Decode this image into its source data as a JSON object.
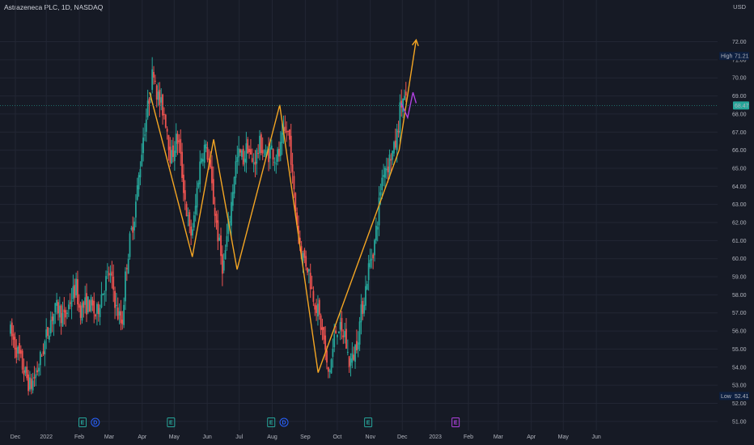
{
  "header": {
    "title": "Astrazeneca PLC, 1D, NASDAQ",
    "currency": "USD"
  },
  "colors": {
    "background": "#161a25",
    "grid": "#222634",
    "text": "#b2b5be",
    "up": "#26a69a",
    "down": "#ef5350",
    "pattern": "#f5a623",
    "projection": "#b041e0",
    "price_label": "#26a69a",
    "hl_label": "#0d1f3f"
  },
  "chart_data": {
    "type": "candlestick",
    "title": "Astrazeneca PLC, 1D, NASDAQ",
    "ylim": [
      50.5,
      73.5
    ],
    "y_ticks": [
      "51.00",
      "52.00",
      "53.00",
      "54.00",
      "55.00",
      "56.00",
      "57.00",
      "58.00",
      "59.00",
      "60.00",
      "61.00",
      "62.00",
      "63.00",
      "64.00",
      "65.00",
      "66.00",
      "67.00",
      "68.00",
      "69.00",
      "70.00",
      "71.00",
      "72.00"
    ],
    "x_ticks": [
      {
        "label": "Dec",
        "t": 0
      },
      {
        "label": "2022",
        "t": 29
      },
      {
        "label": "Feb",
        "t": 60
      },
      {
        "label": "Mar",
        "t": 88
      },
      {
        "label": "Apr",
        "t": 119
      },
      {
        "label": "May",
        "t": 149
      },
      {
        "label": "Jun",
        "t": 180
      },
      {
        "label": "Jul",
        "t": 210
      },
      {
        "label": "Aug",
        "t": 241
      },
      {
        "label": "Sep",
        "t": 272
      },
      {
        "label": "Oct",
        "t": 302
      },
      {
        "label": "Nov",
        "t": 333
      },
      {
        "label": "Dec",
        "t": 363
      },
      {
        "label": "2023",
        "t": 394
      },
      {
        "label": "Feb",
        "t": 425
      },
      {
        "label": "Mar",
        "t": 453
      },
      {
        "label": "Apr",
        "t": 484
      },
      {
        "label": "May",
        "t": 514
      },
      {
        "label": "Jun",
        "t": 545
      }
    ],
    "price_path": [
      [
        -6,
        56.1
      ],
      [
        0,
        55.2
      ],
      [
        8,
        53.8
      ],
      [
        14,
        52.9
      ],
      [
        20,
        53.7
      ],
      [
        27,
        55.2
      ],
      [
        34,
        56.8
      ],
      [
        40,
        57.3
      ],
      [
        46,
        56.6
      ],
      [
        52,
        57.8
      ],
      [
        57,
        58.4
      ],
      [
        60,
        57.2
      ],
      [
        65,
        57.4
      ],
      [
        70,
        57.5
      ],
      [
        76,
        56.8
      ],
      [
        80,
        57.9
      ],
      [
        84,
        58.6
      ],
      [
        88,
        59.2
      ],
      [
        92,
        58.3
      ],
      [
        95,
        57.1
      ],
      [
        98,
        56.7
      ],
      [
        100,
        56.3
      ],
      [
        104,
        59.6
      ],
      [
        108,
        61.2
      ],
      [
        112,
        62.6
      ],
      [
        116,
        64.6
      ],
      [
        120,
        66.8
      ],
      [
        124,
        68.2
      ],
      [
        127,
        69.6
      ],
      [
        130,
        70.6
      ],
      [
        133,
        69.1
      ],
      [
        136,
        68.5
      ],
      [
        139,
        68.2
      ],
      [
        142,
        67.4
      ],
      [
        146,
        65.4
      ],
      [
        150,
        66.5
      ],
      [
        153,
        66.6
      ],
      [
        156,
        64.9
      ],
      [
        160,
        62.9
      ],
      [
        164,
        61.2
      ],
      [
        168,
        62.2
      ],
      [
        171,
        64.2
      ],
      [
        174,
        65.6
      ],
      [
        177,
        66.2
      ],
      [
        181,
        65.7
      ],
      [
        184,
        64.1
      ],
      [
        188,
        62.2
      ],
      [
        192,
        60.4
      ],
      [
        195,
        59.4
      ],
      [
        198,
        60.9
      ],
      [
        202,
        62.7
      ],
      [
        206,
        65.1
      ],
      [
        210,
        65.8
      ],
      [
        214,
        65.5
      ],
      [
        218,
        66.3
      ],
      [
        222,
        65.2
      ],
      [
        226,
        65.7
      ],
      [
        230,
        66.4
      ],
      [
        234,
        65.6
      ],
      [
        238,
        65.9
      ],
      [
        241,
        66.1
      ],
      [
        244,
        65.5
      ],
      [
        248,
        65.8
      ],
      [
        251,
        66.7
      ],
      [
        255,
        67.1
      ],
      [
        258,
        66.3
      ],
      [
        260,
        64.4
      ],
      [
        263,
        62.6
      ],
      [
        266,
        61.3
      ],
      [
        269,
        60.2
      ],
      [
        272,
        59.9
      ],
      [
        275,
        59.4
      ],
      [
        278,
        58.3
      ],
      [
        281,
        57.7
      ],
      [
        284,
        57.0
      ],
      [
        287,
        56.2
      ],
      [
        290,
        55.3
      ],
      [
        292,
        54.0
      ],
      [
        294,
        53.6
      ],
      [
        297,
        54.6
      ],
      [
        300,
        55.9
      ],
      [
        303,
        56.4
      ],
      [
        306,
        55.7
      ],
      [
        309,
        55.9
      ],
      [
        311,
        54.9
      ],
      [
        313,
        54.3
      ],
      [
        316,
        54.4
      ],
      [
        319,
        55.1
      ],
      [
        322,
        56.0
      ],
      [
        325,
        57.2
      ],
      [
        328,
        58.1
      ],
      [
        331,
        59.4
      ],
      [
        334,
        60.1
      ],
      [
        337,
        60.9
      ],
      [
        340,
        62.3
      ],
      [
        343,
        64.1
      ],
      [
        346,
        65.2
      ],
      [
        349,
        65.1
      ],
      [
        352,
        65.7
      ],
      [
        355,
        65.9
      ],
      [
        358,
        66.8
      ],
      [
        361,
        68.3
      ],
      [
        364,
        68.9
      ],
      [
        367,
        68.5
      ]
    ],
    "pattern_lines": [
      {
        "name": "zigzag",
        "points": [
          [
            126,
            69.2
          ],
          [
            166,
            60.1
          ],
          [
            186,
            66.6
          ],
          [
            208,
            59.4
          ],
          [
            248,
            68.5
          ],
          [
            284,
            53.7
          ],
          [
            360,
            66.0
          ],
          [
            376,
            72.1
          ]
        ]
      }
    ],
    "projection_lines": [
      {
        "name": "projection",
        "points": [
          [
            362,
            68.6
          ],
          [
            368,
            67.8
          ],
          [
            373,
            69.2
          ],
          [
            376,
            68.6
          ]
        ]
      }
    ],
    "high": {
      "label": "High",
      "value": "71.21",
      "y": 71.21
    },
    "low": {
      "label": "Low",
      "value": "52.41",
      "y": 52.41
    },
    "last": {
      "value": "68.47",
      "y": 68.47
    },
    "events": [
      {
        "letter": "E",
        "t": 63,
        "color": "#26a69a"
      },
      {
        "letter": "D",
        "t": 75,
        "color": "#2962ff"
      },
      {
        "letter": "E",
        "t": 146,
        "color": "#26a69a"
      },
      {
        "letter": "E",
        "t": 240,
        "color": "#26a69a"
      },
      {
        "letter": "D",
        "t": 252,
        "color": "#2962ff"
      },
      {
        "letter": "E",
        "t": 331,
        "color": "#26a69a"
      },
      {
        "letter": "E",
        "t": 413,
        "color": "#b041e0"
      }
    ]
  }
}
